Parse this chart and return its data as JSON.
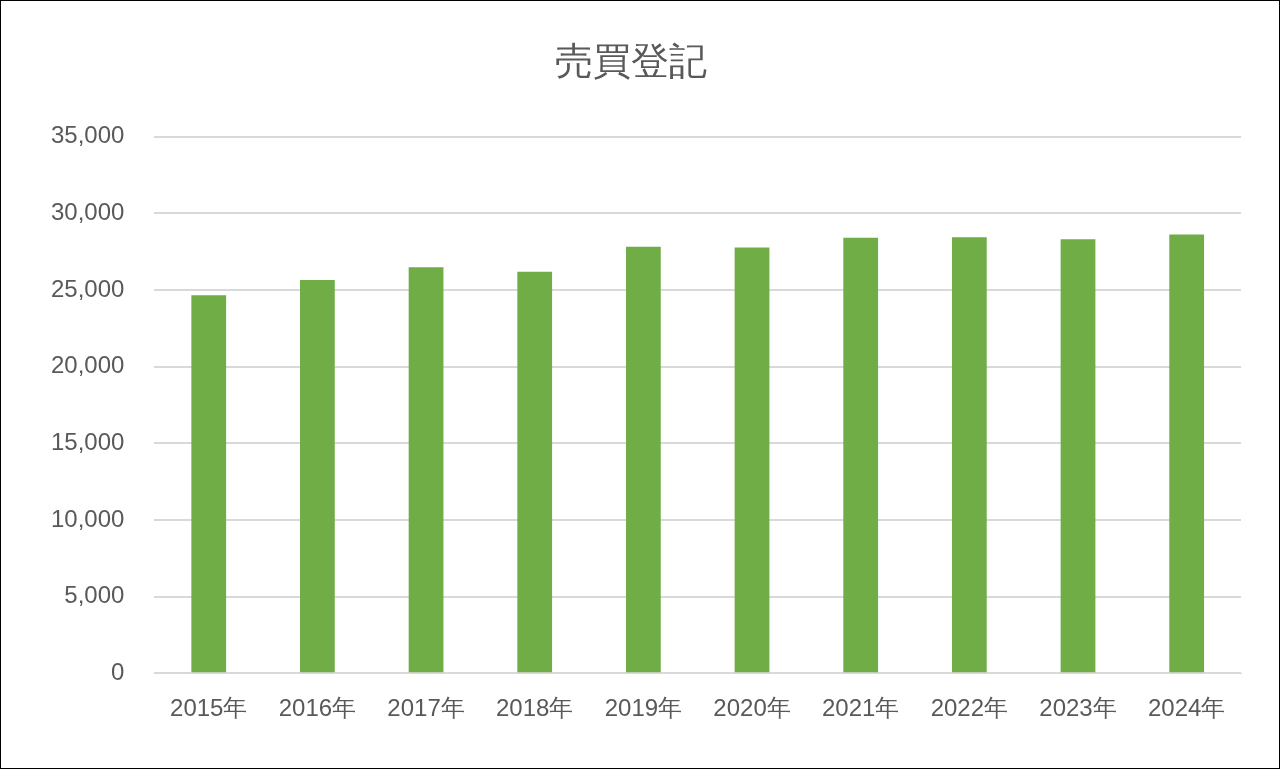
{
  "chart_data": {
    "type": "bar",
    "title": "売買登記",
    "categories": [
      "2015年",
      "2016年",
      "2017年",
      "2018年",
      "2019年",
      "2020年",
      "2021年",
      "2022年",
      "2023年",
      "2024年"
    ],
    "values": [
      24660,
      25650,
      26480,
      26190,
      27810,
      27770,
      28400,
      28440,
      28310,
      28610
    ],
    "color": "#70ad47",
    "ylim": [
      0,
      35000
    ],
    "yticks": [
      {
        "value": 0,
        "label": "0"
      },
      {
        "value": 5000,
        "label": "5,000"
      },
      {
        "value": 10000,
        "label": "10,000"
      },
      {
        "value": 15000,
        "label": "15,000"
      },
      {
        "value": 20000,
        "label": "20,000"
      },
      {
        "value": 25000,
        "label": "25,000"
      },
      {
        "value": 30000,
        "label": "30,000"
      },
      {
        "value": 35000,
        "label": "35,000"
      }
    ],
    "grid": "y",
    "legend": false
  }
}
